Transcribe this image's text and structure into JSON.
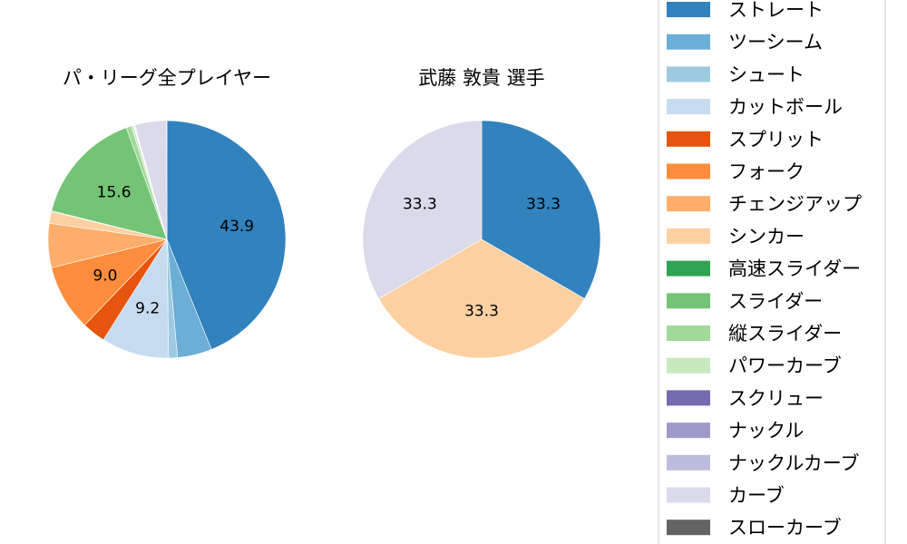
{
  "colors": {
    "ストレート": "#3182bd",
    "ツーシーム": "#6baed6",
    "シュート": "#9ecae1",
    "カットボール": "#c6dbef",
    "スプリット": "#e6550d",
    "フォーク": "#fd8d3c",
    "チェンジアップ": "#fdae6b",
    "シンカー": "#fdd0a2",
    "高速スライダー": "#31a354",
    "スライダー": "#74c476",
    "縦スライダー": "#a1d99b",
    "パワーカーブ": "#c7e9c0",
    "スクリュー": "#756bb1",
    "ナックル": "#9e9ac8",
    "ナックルカーブ": "#bcbddc",
    "カーブ": "#dadaeb",
    "スローカーブ": "#636363"
  },
  "chart_data": [
    {
      "type": "pie",
      "title": "パ・リーグ全プレイヤー",
      "slices": [
        {
          "label": "ストレート",
          "value": 43.9,
          "display": "43.9"
        },
        {
          "label": "ツーシーム",
          "value": 4.7,
          "display": ""
        },
        {
          "label": "シュート",
          "value": 1.2,
          "display": ""
        },
        {
          "label": "カットボール",
          "value": 9.2,
          "display": "9.2"
        },
        {
          "label": "スプリット",
          "value": 3.2,
          "display": ""
        },
        {
          "label": "フォーク",
          "value": 9.0,
          "display": "9.0"
        },
        {
          "label": "チェンジアップ",
          "value": 6.0,
          "display": ""
        },
        {
          "label": "シンカー",
          "value": 1.6,
          "display": ""
        },
        {
          "label": "高速スライダー",
          "value": 0.1,
          "display": ""
        },
        {
          "label": "スライダー",
          "value": 15.6,
          "display": "15.6"
        },
        {
          "label": "縦スライダー",
          "value": 0.7,
          "display": ""
        },
        {
          "label": "パワーカーブ",
          "value": 0.3,
          "display": ""
        },
        {
          "label": "スクリュー",
          "value": 0.05,
          "display": ""
        },
        {
          "label": "ナックル",
          "value": 0.05,
          "display": ""
        },
        {
          "label": "ナックルカーブ",
          "value": 0.1,
          "display": ""
        },
        {
          "label": "カーブ",
          "value": 4.3,
          "display": ""
        },
        {
          "label": "スローカーブ",
          "value": 0.05,
          "display": ""
        }
      ]
    },
    {
      "type": "pie",
      "title": "武藤 敦貴  選手",
      "slices": [
        {
          "label": "ストレート",
          "value": 33.3,
          "display": "33.3"
        },
        {
          "label": "シンカー",
          "value": 33.3,
          "display": "33.3"
        },
        {
          "label": "カーブ",
          "value": 33.3,
          "display": "33.3"
        }
      ]
    }
  ],
  "legend": {
    "entries": [
      "ストレート",
      "ツーシーム",
      "シュート",
      "カットボール",
      "スプリット",
      "フォーク",
      "チェンジアップ",
      "シンカー",
      "高速スライダー",
      "スライダー",
      "縦スライダー",
      "パワーカーブ",
      "スクリュー",
      "ナックル",
      "ナックルカーブ",
      "カーブ",
      "スローカーブ"
    ]
  }
}
